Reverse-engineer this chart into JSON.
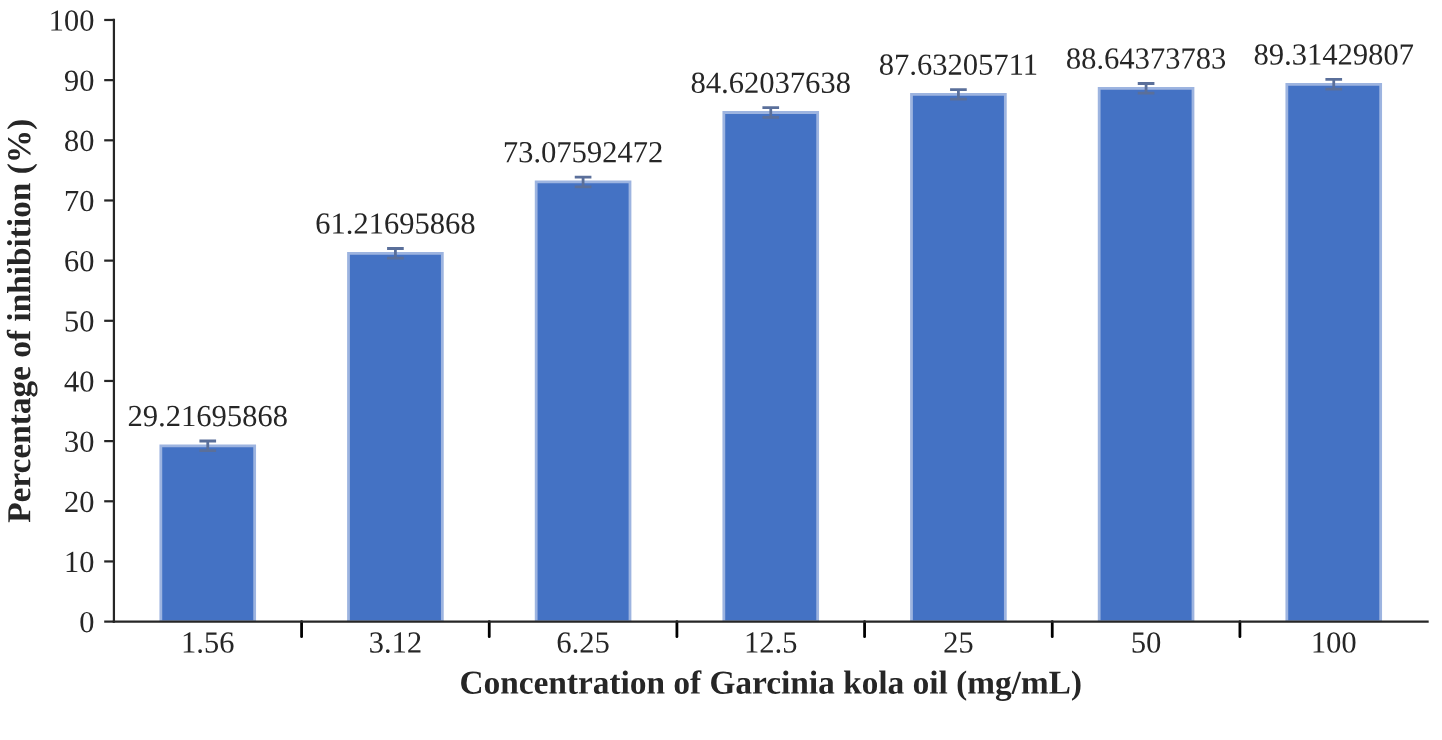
{
  "chart_data": {
    "type": "bar",
    "xlabel": "Concentration of Garcinia kola oil (mg/mL)",
    "ylabel": "Percentage of inhibition (%)",
    "categories": [
      "1.56",
      "3.12",
      "6.25",
      "12.5",
      "25",
      "50",
      "100"
    ],
    "values": [
      29.21695868,
      61.21695868,
      73.07592472,
      84.62037638,
      87.63205711,
      88.64373783,
      89.31429807
    ],
    "errors": [
      0.8,
      0.8,
      0.8,
      0.8,
      0.8,
      0.8,
      0.8
    ],
    "color": "#4472c4",
    "data_labels": true,
    "grid": false,
    "legend": false,
    "ylim": [
      0,
      100
    ],
    "yticks": [
      0,
      10,
      20,
      30,
      40,
      50,
      60,
      70,
      80,
      90,
      100
    ]
  }
}
